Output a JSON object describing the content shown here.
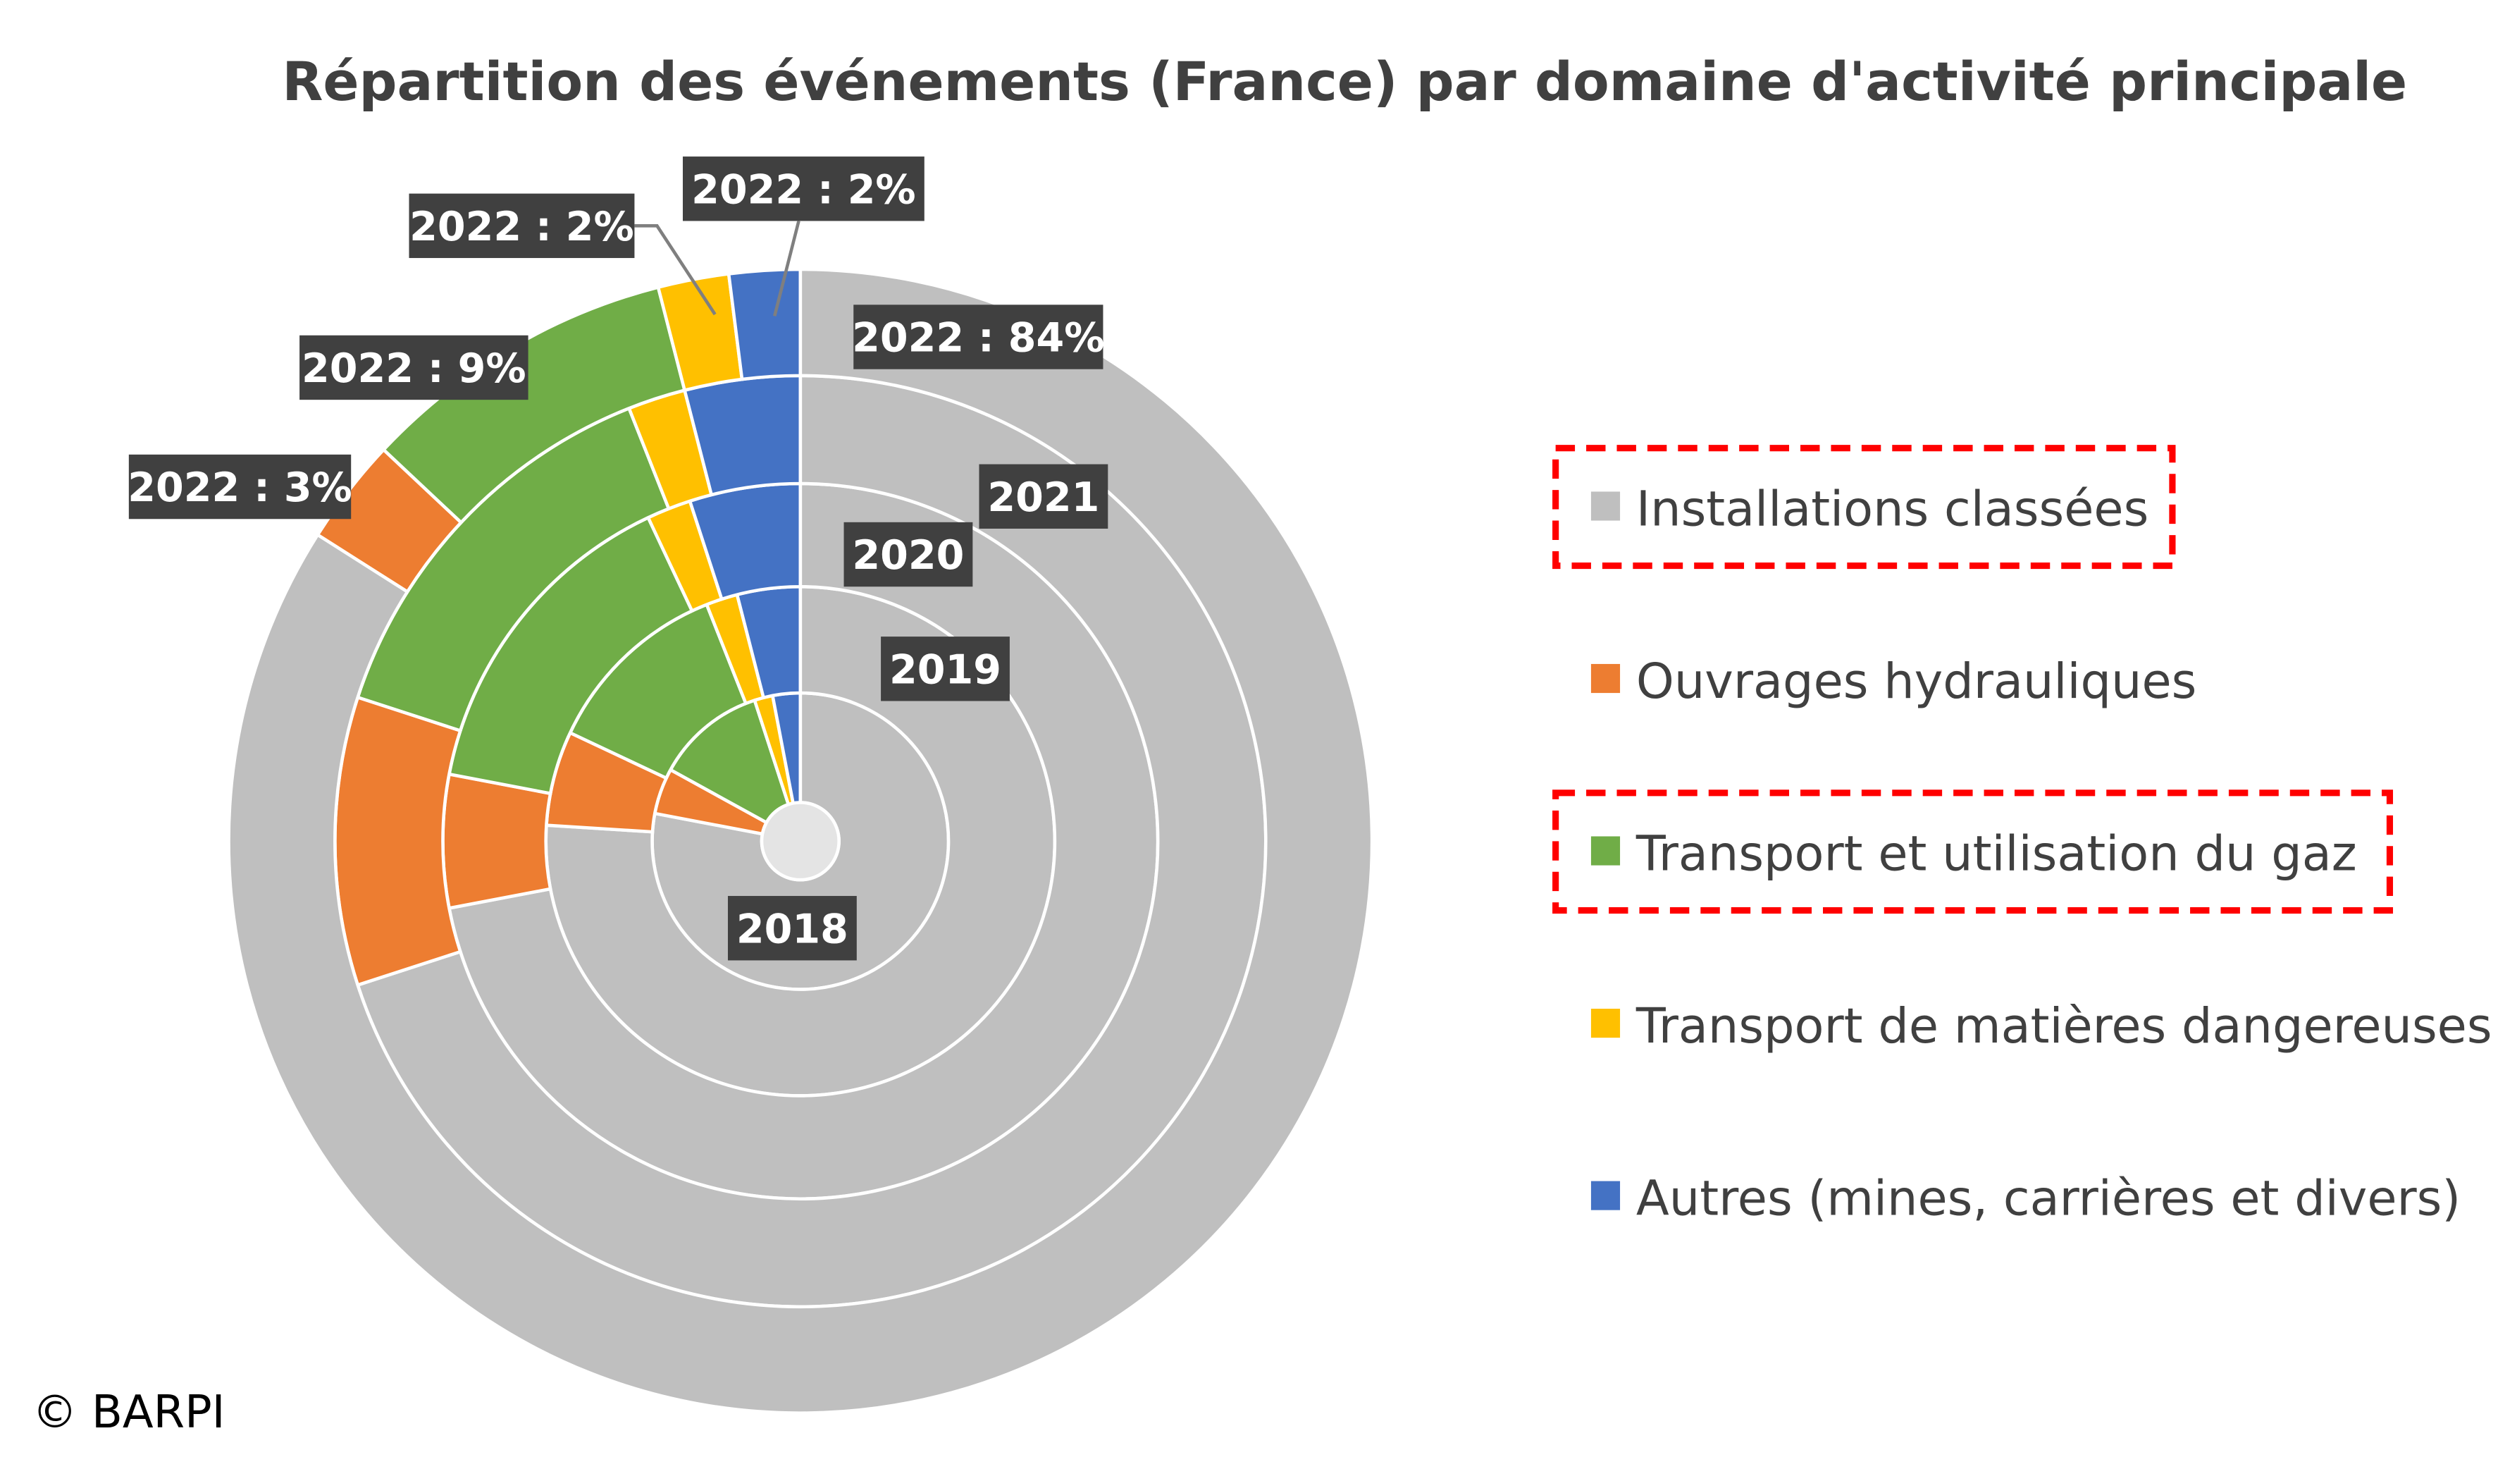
{
  "chart_data": {
    "type": "sunburst",
    "title": "Répartition des événements (France) par domaine d'activité principale",
    "categories": [
      "Installations classées",
      "Ouvrages hydrauliques",
      "Transport et utilisation du gaz",
      "Transport de matières dangereuses",
      "Autres (mines, carrières et divers)"
    ],
    "colors": [
      "#bfbfbf",
      "#ed7d31",
      "#70ad47",
      "#ffc000",
      "#4472c4"
    ],
    "highlighted_legend_items": [
      "Installations classées",
      "Transport et utilisation du gaz"
    ],
    "series": [
      {
        "name": "2018",
        "values": [
          78,
          5,
          12,
          2,
          3
        ]
      },
      {
        "name": "2019",
        "values": [
          76,
          6,
          12,
          2,
          4
        ]
      },
      {
        "name": "2020",
        "values": [
          72,
          6,
          15,
          2,
          5
        ]
      },
      {
        "name": "2021",
        "values": [
          70,
          10,
          14,
          2,
          4
        ]
      },
      {
        "name": "2022",
        "values": [
          84,
          3,
          9,
          2,
          2
        ]
      }
    ],
    "ring_labels": [
      "2018",
      "2019",
      "2020",
      "2021"
    ],
    "data_labels": [
      "2022 : 84%",
      "2022 : 3%",
      "2022 : 9%",
      "2022 : 2%",
      "2022 : 2%"
    ],
    "unit": "%"
  },
  "footer": {
    "copyright": "© BARPI"
  }
}
